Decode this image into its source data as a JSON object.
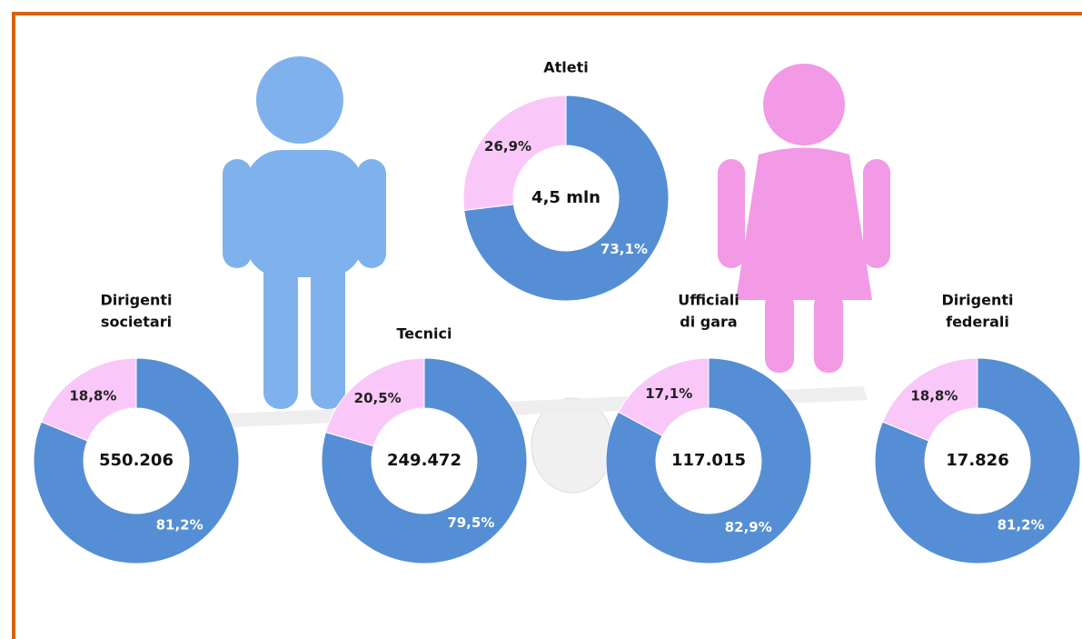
{
  "chart_data": [
    {
      "type": "donut",
      "title": [
        "Atleti"
      ],
      "center_label": "4,5 mln",
      "values": [
        73.1,
        26.9
      ],
      "value_labels": [
        "73,1%",
        "26,9%"
      ],
      "colors": [
        "#558ed5",
        "#f9c8f9"
      ]
    },
    {
      "type": "donut",
      "title": [
        "Dirigenti",
        "societari"
      ],
      "center_label": "550.206",
      "values": [
        81.2,
        18.8
      ],
      "value_labels": [
        "81,2%",
        "18,8%"
      ],
      "colors": [
        "#558ed5",
        "#f9c8f9"
      ]
    },
    {
      "type": "donut",
      "title": [
        "Tecnici"
      ],
      "center_label": "249.472",
      "values": [
        79.5,
        20.5
      ],
      "value_labels": [
        "79,5%",
        "20,5%"
      ],
      "colors": [
        "#558ed5",
        "#f9c8f9"
      ]
    },
    {
      "type": "donut",
      "title": [
        "Ufficiali",
        "di gara"
      ],
      "center_label": "117.015",
      "values": [
        82.9,
        17.1
      ],
      "value_labels": [
        "82,9%",
        "17,1%"
      ],
      "colors": [
        "#558ed5",
        "#f9c8f9"
      ]
    },
    {
      "type": "donut",
      "title": [
        "Dirigenti",
        "federali"
      ],
      "center_label": "17.826",
      "values": [
        81.2,
        18.8
      ],
      "value_labels": [
        "81,2%",
        "18,8%"
      ],
      "colors": [
        "#558ed5",
        "#f9c8f9"
      ]
    }
  ]
}
